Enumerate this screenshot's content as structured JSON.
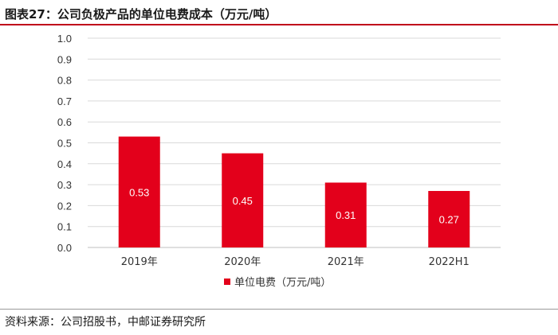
{
  "header": {
    "title": "图表27：公司负极产品的单位电费成本（万元/吨）"
  },
  "footer": {
    "source": "资料来源：公司招股书，中邮证券研究所"
  },
  "colors": {
    "bar": "#e3001b",
    "title_rule": "#c0001a",
    "grid": "#d9d9d9"
  },
  "chart_data": {
    "type": "bar",
    "categories": [
      "2019年",
      "2020年",
      "2021年",
      "2022H1"
    ],
    "series": [
      {
        "name": "单位电费（万元/吨）",
        "values": [
          0.53,
          0.45,
          0.31,
          0.27
        ]
      }
    ],
    "data_labels": [
      "0.53",
      "0.45",
      "0.31",
      "0.27"
    ],
    "y_ticks": [
      "0.0",
      "0.1",
      "0.2",
      "0.3",
      "0.4",
      "0.5",
      "0.6",
      "0.7",
      "0.8",
      "0.9",
      "1.0"
    ],
    "ylim": [
      0,
      1.0
    ],
    "grid": true,
    "legend_position": "bottom-center"
  }
}
